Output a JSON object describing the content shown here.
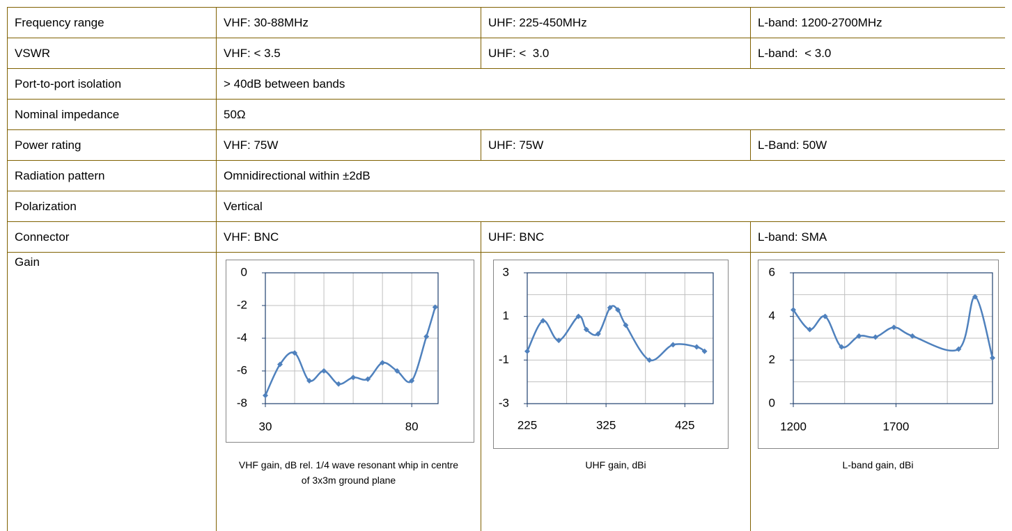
{
  "table": {
    "rows": [
      [
        "Frequency range",
        "VHF: 30-88MHz",
        "UHF: 225-450MHz",
        "L-band: 1200-2700MHz"
      ],
      [
        "VSWR",
        "VHF: < 3.5",
        "UHF: <  3.0",
        "L-band:  < 3.0"
      ],
      [
        "Port-to-port isolation",
        "> 40dB between bands"
      ],
      [
        "Nominal impedance",
        "50Ω"
      ],
      [
        "Power rating",
        "VHF: 75W",
        "UHF: 75W",
        "L-Band: 50W"
      ],
      [
        "Radiation pattern",
        "Omnidirectional within ±2dB"
      ],
      [
        "Polarization",
        "Vertical"
      ],
      [
        "Connector",
        "VHF: BNC",
        "UHF: BNC",
        "L-band: SMA"
      ]
    ],
    "gain_label": "Gain"
  },
  "chart_data": [
    {
      "type": "line",
      "caption": "VHF gain, dB rel. 1/4 wave resonant whip in centre of 3x3m ground plane",
      "color": "#4f81bd",
      "x": [
        30,
        35,
        40,
        45,
        50,
        55,
        60,
        65,
        70,
        75,
        80,
        85,
        88
      ],
      "values": [
        -7.5,
        -5.6,
        -4.9,
        -6.6,
        -6.0,
        -6.8,
        -6.4,
        -6.5,
        -5.5,
        -6.0,
        -6.6,
        -3.9,
        -2.1
      ],
      "xlim": [
        30,
        89
      ],
      "ylim": [
        -8,
        0
      ],
      "xticks": [
        30,
        80
      ],
      "yticks": [
        0,
        -2,
        -4,
        -6,
        -8
      ],
      "grid": true,
      "xgrid": [
        40,
        50,
        60,
        70,
        80
      ],
      "ygrid": [
        -2,
        -4,
        -6
      ]
    },
    {
      "type": "line",
      "caption": "UHF gain, dBi",
      "color": "#4f81bd",
      "x": [
        225,
        245,
        265,
        290,
        300,
        315,
        330,
        340,
        350,
        380,
        410,
        440,
        450
      ],
      "values": [
        -0.6,
        0.8,
        -0.1,
        1.0,
        0.4,
        0.2,
        1.4,
        1.3,
        0.6,
        -1.0,
        -0.3,
        -0.4,
        -0.6
      ],
      "xlim": [
        225,
        461
      ],
      "ylim": [
        -3,
        3
      ],
      "xticks": [
        225,
        325,
        425
      ],
      "yticks": [
        3,
        1,
        -1,
        -3
      ],
      "grid": true,
      "xgrid": [
        275,
        325,
        375,
        425
      ],
      "ygrid": [
        2,
        1,
        0,
        -1,
        -2
      ]
    },
    {
      "type": "line",
      "caption": "L-band gain, dBi",
      "color": "#4f81bd",
      "x": [
        1200,
        1280,
        1355,
        1435,
        1520,
        1600,
        1690,
        1780,
        2005,
        2085,
        2170
      ],
      "values": [
        4.3,
        3.4,
        4.0,
        2.6,
        3.1,
        3.05,
        3.5,
        3.1,
        2.5,
        4.9,
        2.1
      ],
      "xlim": [
        1200,
        2170
      ],
      "ylim": [
        0,
        6
      ],
      "xticks": [
        1200,
        1700
      ],
      "yticks": [
        6,
        4,
        2,
        0
      ],
      "grid": true,
      "xgrid": [
        1450,
        1700,
        1950
      ],
      "ygrid": [
        5,
        4,
        3,
        2,
        1
      ]
    }
  ]
}
